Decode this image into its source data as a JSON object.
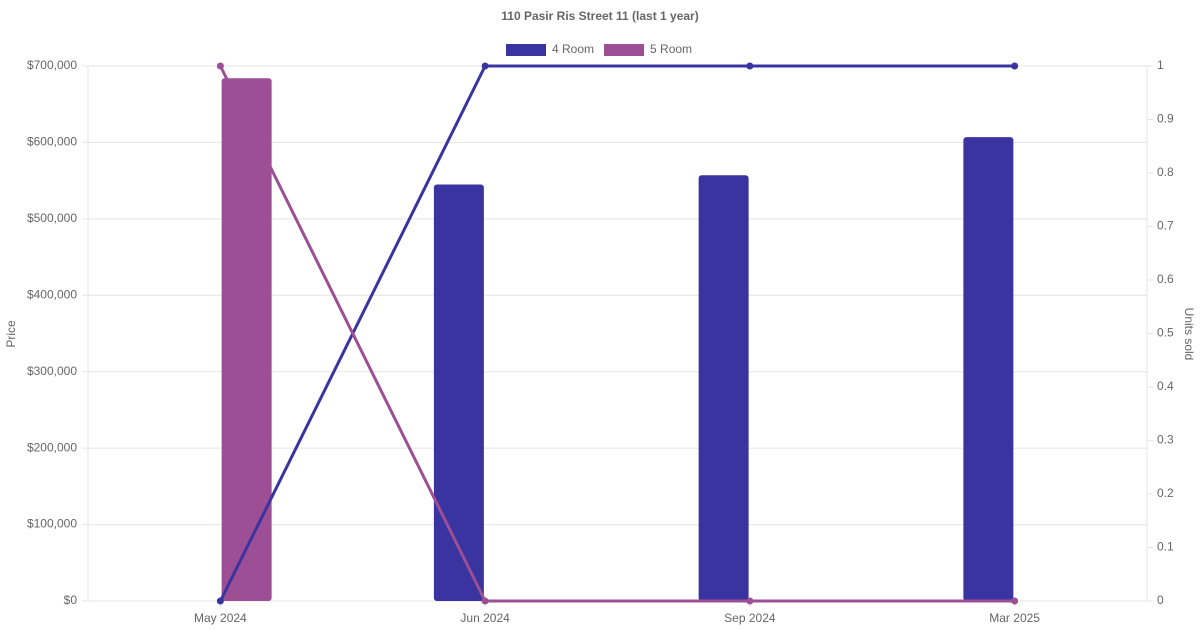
{
  "chart_data": {
    "type": "bar-line",
    "title": "110 Pasir Ris Street 11 (last 1 year)",
    "categories": [
      "May 2024",
      "Jun 2024",
      "Sep 2024",
      "Mar 2025"
    ],
    "series": [
      {
        "name": "4 Room",
        "color": "#3a34a0",
        "values": [
          null,
          545000,
          557000,
          607000
        ],
        "units_sold": [
          0,
          1,
          1,
          1
        ]
      },
      {
        "name": "5 Room",
        "color": "#9c4f94",
        "values": [
          684000,
          null,
          null,
          null
        ],
        "units_sold": [
          1,
          0,
          0,
          0
        ]
      }
    ],
    "ylabel": "Price",
    "y2label": "Units sold",
    "ylim": [
      0,
      700000
    ],
    "yticks": [
      {
        "value": 0,
        "label": "$0"
      },
      {
        "value": 100000,
        "label": "$100,000"
      },
      {
        "value": 200000,
        "label": "$200,000"
      },
      {
        "value": 300000,
        "label": "$300,000"
      },
      {
        "value": 400000,
        "label": "$400,000"
      },
      {
        "value": 500000,
        "label": "$500,000"
      },
      {
        "value": 600000,
        "label": "$600,000"
      },
      {
        "value": 700000,
        "label": "$700,000"
      }
    ],
    "y2lim": [
      0,
      1
    ],
    "y2ticks": [
      0,
      0.1,
      0.2,
      0.3,
      0.4,
      0.5,
      0.6,
      0.7,
      0.8,
      0.9,
      1
    ],
    "grid": true,
    "legend": "top"
  }
}
